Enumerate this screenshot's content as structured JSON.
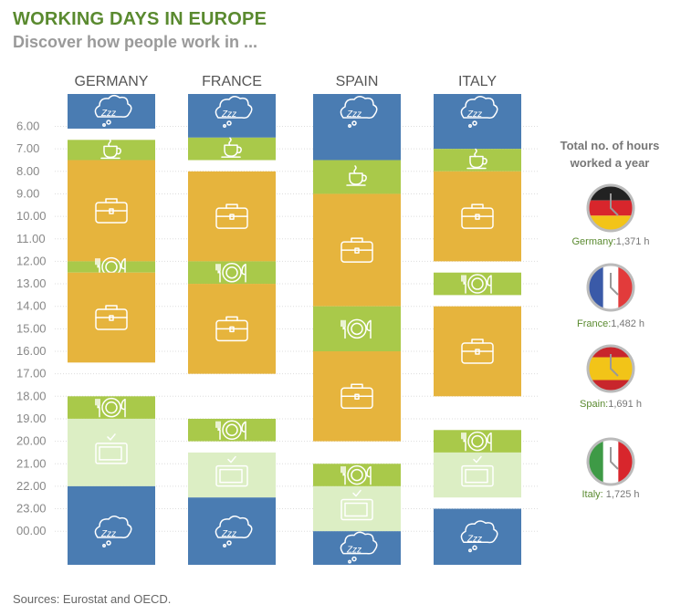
{
  "title": "WORKING DAYS IN EUROPE",
  "subtitle": "Discover how people work in ...",
  "source": "Sources: Eurostat and OECD.",
  "side_title": "Total no. of hours worked a year",
  "colors": {
    "sleep": "#4a7cb2",
    "meal": "#a9c94a",
    "work": "#e6b43d",
    "tv": "#dceec4",
    "grid": "#dddddd",
    "title": "#5a8a2f"
  },
  "icons": {
    "sleep": "sleep-cloud-icon",
    "coffee": "coffee-cup-icon",
    "work": "briefcase-icon",
    "meal": "plate-cutlery-icon",
    "tv": "television-icon"
  },
  "hours_totals": [
    {
      "country": "Germany",
      "label": "Germany:",
      "value": "1,371 h",
      "hours": 1371,
      "flag": [
        "#222222",
        "#d8262c",
        "#f2c418"
      ]
    },
    {
      "country": "France",
      "label": "France:",
      "value": "1,482 h",
      "hours": 1482,
      "flag": [
        "#3a5aa8",
        "#ffffff",
        "#e23b3b"
      ]
    },
    {
      "country": "Spain",
      "label": "Spain:",
      "value": "1,691 h",
      "hours": 1691,
      "flag": [
        "#c8262c",
        "#f2c418",
        "#c8262c"
      ]
    },
    {
      "country": "Italy",
      "label": "Italy: ",
      "value": "1,725 h",
      "hours": 1725,
      "flag": [
        "#3e9a46",
        "#ffffff",
        "#d8262c"
      ]
    }
  ],
  "chart_data": {
    "type": "bar",
    "title": "WORKING DAYS IN EUROPE",
    "subtitle": "Discover how people work in ...",
    "y_ticks": [
      "6.00",
      "7.00",
      "8.00",
      "9.00",
      "10.00",
      "11.00",
      "12.00",
      "13.00",
      "14.00",
      "15.00",
      "16.00",
      "17.00",
      "18.00",
      "19.00",
      "20.00",
      "21.00",
      "22.00",
      "23.00",
      "00.00"
    ],
    "ylim": [
      5.2,
      25.5
    ],
    "categories": [
      "GERMANY",
      "FRANCE",
      "SPAIN",
      "ITALY"
    ],
    "series": [
      {
        "country": "GERMANY",
        "blocks": [
          {
            "activity": "sleep",
            "start": 5.2,
            "end": 6.1
          },
          {
            "activity": "coffee",
            "start": 6.6,
            "end": 7.5
          },
          {
            "activity": "work",
            "start": 7.5,
            "end": 12.0
          },
          {
            "activity": "meal",
            "start": 12.0,
            "end": 12.5
          },
          {
            "activity": "work",
            "start": 12.5,
            "end": 16.5
          },
          {
            "activity": "meal",
            "start": 18.0,
            "end": 19.0
          },
          {
            "activity": "tv",
            "start": 19.0,
            "end": 22.0
          },
          {
            "activity": "sleep",
            "start": 22.0,
            "end": 25.5
          }
        ]
      },
      {
        "country": "FRANCE",
        "blocks": [
          {
            "activity": "sleep",
            "start": 5.2,
            "end": 6.5
          },
          {
            "activity": "coffee",
            "start": 6.5,
            "end": 7.5
          },
          {
            "activity": "work",
            "start": 8.0,
            "end": 12.0
          },
          {
            "activity": "meal",
            "start": 12.0,
            "end": 13.0
          },
          {
            "activity": "work",
            "start": 13.0,
            "end": 17.0
          },
          {
            "activity": "meal",
            "start": 19.0,
            "end": 20.0
          },
          {
            "activity": "tv",
            "start": 20.5,
            "end": 22.5
          },
          {
            "activity": "sleep",
            "start": 22.5,
            "end": 25.5
          }
        ]
      },
      {
        "country": "SPAIN",
        "blocks": [
          {
            "activity": "sleep",
            "start": 5.2,
            "end": 7.5
          },
          {
            "activity": "coffee",
            "start": 7.5,
            "end": 9.0
          },
          {
            "activity": "work",
            "start": 9.0,
            "end": 14.0
          },
          {
            "activity": "meal",
            "start": 14.0,
            "end": 16.0
          },
          {
            "activity": "work",
            "start": 16.0,
            "end": 20.0
          },
          {
            "activity": "meal",
            "start": 21.0,
            "end": 22.0
          },
          {
            "activity": "tv",
            "start": 22.0,
            "end": 24.0
          },
          {
            "activity": "sleep",
            "start": 24.0,
            "end": 25.5
          }
        ]
      },
      {
        "country": "ITALY",
        "blocks": [
          {
            "activity": "sleep",
            "start": 5.2,
            "end": 7.0
          },
          {
            "activity": "coffee",
            "start": 7.0,
            "end": 8.0
          },
          {
            "activity": "work",
            "start": 8.0,
            "end": 12.0
          },
          {
            "activity": "meal",
            "start": 12.5,
            "end": 13.5
          },
          {
            "activity": "work",
            "start": 14.0,
            "end": 18.0
          },
          {
            "activity": "meal",
            "start": 19.5,
            "end": 20.5
          },
          {
            "activity": "tv",
            "start": 20.5,
            "end": 22.5
          },
          {
            "activity": "sleep",
            "start": 23.0,
            "end": 25.5
          }
        ]
      }
    ]
  }
}
